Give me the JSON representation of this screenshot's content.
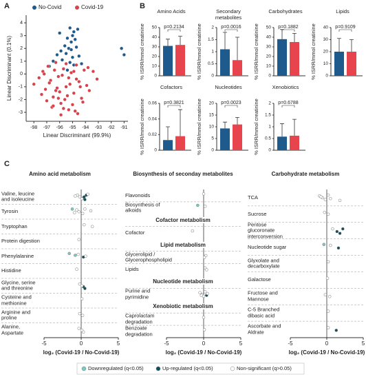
{
  "chart_data": [
    {
      "type": "scatter",
      "panel": "A",
      "xlabel": "Linear Discriminant (99.9%)",
      "ylabel": "Linear Discriminant (0.1%)",
      "xlim": [
        -98.6,
        -90.7
      ],
      "xticks": [
        -98,
        -97,
        -96,
        -95,
        -94,
        -93,
        -92,
        -91
      ],
      "ylim": [
        -3.7,
        4.6
      ],
      "yticks": [
        -3,
        -2,
        -1,
        0,
        1,
        2,
        3,
        4
      ],
      "series": [
        {
          "name": "No-Covid",
          "color": "#1f5a8c",
          "x": [
            -95.2,
            -94.9,
            -95.0,
            -94.6,
            -95.4,
            -95.1,
            -94.8,
            -95.6,
            -95.3,
            -94.7,
            -95.9,
            -96.2,
            -95.5,
            -95.0,
            -94.5,
            -96.5,
            -95.8,
            -95.2,
            -94.9,
            -96.8,
            -95.7,
            -95.4,
            -94.3,
            -91.2,
            -91.0,
            -96.0,
            -95.1
          ],
          "y": [
            3.6,
            3.3,
            3.0,
            3.5,
            2.8,
            2.5,
            2.7,
            2.2,
            2.0,
            2.1,
            1.8,
            1.5,
            1.6,
            1.3,
            1.4,
            1.0,
            1.1,
            0.9,
            0.7,
            0.6,
            0.4,
            0.3,
            0.8,
            2.0,
            1.5,
            3.2,
            1.9
          ]
        },
        {
          "name": "Covid-19",
          "color": "#d6434c",
          "x": [
            -98.0,
            -97.6,
            -97.3,
            -97.1,
            -96.9,
            -96.7,
            -96.5,
            -96.3,
            -96.1,
            -95.9,
            -95.7,
            -95.5,
            -95.3,
            -95.1,
            -94.9,
            -94.7,
            -94.5,
            -94.3,
            -94.1,
            -93.9,
            -93.7,
            -93.4,
            -93.1,
            -97.4,
            -97.0,
            -96.6,
            -96.2,
            -95.8,
            -95.4,
            -95.0,
            -94.6,
            -94.2,
            -93.8,
            -96.8,
            -96.4,
            -96.0,
            -95.6,
            -95.2,
            -94.8,
            -94.4,
            -97.2,
            -96.5,
            -95.9,
            -95.3,
            -94.7,
            -96.1,
            -95.5,
            -94.9,
            -95.7,
            -96.3
          ],
          "y": [
            -0.8,
            -0.3,
            0.2,
            -1.2,
            0.6,
            -0.5,
            -1.8,
            0.9,
            -0.2,
            -2.3,
            0.4,
            -1.0,
            -2.8,
            0.1,
            -1.5,
            0.7,
            -0.6,
            -1.9,
            0.3,
            -0.9,
            -1.3,
            0.2,
            -0.4,
            -1.6,
            -2.1,
            -2.6,
            -1.1,
            -0.1,
            -1.7,
            -2.4,
            -3.1,
            -2.2,
            0.5,
            -0.7,
            0.3,
            -1.4,
            -2.0,
            -0.8,
            -2.9,
            -1.0,
            0.0,
            -2.5,
            -3.2,
            -0.3,
            -0.4,
            -1.9,
            0.8,
            0.2,
            -2.7,
            -1.3
          ]
        }
      ]
    },
    {
      "type": "bar",
      "panel": "B",
      "title": "Amino Acids",
      "ylabel": "% ISRR/mmol creatinine",
      "annotation": "p=0.2134",
      "values": [
        31,
        32
      ],
      "errors": [
        7,
        9
      ],
      "colors": [
        "#1f5a8c",
        "#e8444e"
      ],
      "ylim": [
        0,
        50
      ],
      "yticks": [
        0,
        10,
        20,
        30,
        40,
        50
      ]
    },
    {
      "type": "bar",
      "title": "Secondary metabolites",
      "ylabel": "% ISRR/mmol creatinine",
      "annotation": "p=0.0016",
      "values": [
        1.1,
        0.65
      ],
      "errors": [
        0.7,
        0.95
      ],
      "colors": [
        "#1f5a8c",
        "#e8444e"
      ],
      "ylim": [
        0,
        2
      ],
      "yticks": [
        0,
        0.5,
        1,
        1.5,
        2
      ]
    },
    {
      "type": "bar",
      "title": "Carbohydrates",
      "ylabel": "% ISRR/mmol creatinine",
      "annotation": "p=0.1882",
      "values": [
        38,
        35
      ],
      "errors": [
        10,
        9
      ],
      "colors": [
        "#1f5a8c",
        "#e8444e"
      ],
      "ylim": [
        0,
        50
      ],
      "yticks": [
        0,
        10,
        20,
        30,
        40,
        50
      ]
    },
    {
      "type": "bar",
      "title": "Lipids",
      "ylabel": "% ISRR/mmol creatinine",
      "annotation": "p=0.9109",
      "values": [
        20,
        20
      ],
      "errors": [
        11,
        10
      ],
      "colors": [
        "#1f5a8c",
        "#e8444e"
      ],
      "ylim": [
        0,
        40
      ],
      "yticks": [
        0,
        10,
        20,
        30,
        40
      ]
    },
    {
      "type": "bar",
      "title": "Cofactors",
      "ylabel": "% ISRR/mmol creatinine",
      "annotation": "p=0.3821",
      "values": [
        0.013,
        0.018
      ],
      "errors": [
        0.017,
        0.034
      ],
      "colors": [
        "#1f5a8c",
        "#e8444e"
      ],
      "ylim": [
        0,
        0.06
      ],
      "yticks": [
        0,
        0.02,
        0.04,
        0.06
      ]
    },
    {
      "type": "bar",
      "title": "Nucleotides",
      "ylabel": "% ISRR/mmol creatinine",
      "annotation": "p=0.0023",
      "values": [
        9.3,
        11
      ],
      "errors": [
        2.7,
        3
      ],
      "colors": [
        "#1f5a8c",
        "#e8444e"
      ],
      "ylim": [
        0,
        20
      ],
      "yticks": [
        0,
        5,
        10,
        15,
        20
      ]
    },
    {
      "type": "bar",
      "title": "Xenobiotics",
      "ylabel": "% ISRR/mmol creatinine",
      "annotation": "p=0.6788",
      "values": [
        0.58,
        0.62
      ],
      "errors": [
        0.55,
        0.7
      ],
      "colors": [
        "#1f5a8c",
        "#e8444e"
      ],
      "ylim": [
        0,
        2
      ],
      "yticks": [
        0,
        0.5,
        1,
        1.5,
        2
      ]
    },
    {
      "type": "dot",
      "panel": "C",
      "xlabel": "log₂ (Covid-19 / No-Covid-19)",
      "xlim": [
        -5,
        5
      ],
      "xticks": [
        -5,
        0,
        5
      ],
      "series": [
        {
          "name": "Downregulated (q<0.05)",
          "color": "#7ccac4"
        },
        {
          "name": "Up-regulated (q<0.05)",
          "color": "#0f4f5c"
        },
        {
          "name": "Non-significant (q>0.05)",
          "color": "#ffffff"
        }
      ],
      "groups": [
        {
          "title": "Amino acid metabolism",
          "categories": [
            "Valine, leucine and isoleucine",
            "Tyrosin",
            "Tryptophan",
            "Protein digestion",
            "Phenylalanine",
            "Histidine",
            "Glycine, serine and threonine",
            "Cysteine and methionine",
            "Arginine and proline",
            "Alanine, Aspartate"
          ],
          "points": [
            [
              [],
              [
                0.3,
                0.5,
                0.7,
                0.4
              ],
              [
                -0.5,
                -0.2,
                0.1,
                0.9,
                -0.8
              ]
            ],
            [
              [
                -1.2
              ],
              [],
              [
                -0.6,
                -0.3,
                0.2,
                0.5,
                1.3,
                -0.9
              ]
            ],
            [
              [],
              [],
              [
                0.4,
                1.5
              ]
            ],
            [
              [],
              [],
              [
                -0.3
              ]
            ],
            [
              [
                -1.6,
                -0.8
              ],
              [
                0.3
              ],
              [
                -0.4,
                0.6
              ]
            ],
            [
              [],
              [],
              [
                -0.6
              ]
            ],
            [
              [],
              [
                0.3,
                0.5
              ],
              [
                -0.2,
                0.1
              ]
            ],
            [
              [],
              [],
              [
                0.1
              ]
            ],
            [
              [],
              [],
              [
                -0.2,
                0.2
              ]
            ],
            [
              [],
              [],
              [
                -0.3,
                0.1,
                0.3
              ]
            ]
          ]
        }
      ]
    },
    {
      "type": "dot",
      "xlabel": "log₂ (Covid-19 / No-Covid-19)",
      "xlim": [
        -5,
        5
      ],
      "xticks": [
        -5,
        0,
        5
      ],
      "groups": [
        {
          "title": "Biosynthesis of seconday metabolites",
          "categories": [
            "Flavonoids",
            "Biosynthesis of alkoids"
          ],
          "points": [
            [
              [],
              [],
              [
                0
              ]
            ],
            [
              [
                -0.8
              ],
              [],
              [
                0.2
              ]
            ]
          ]
        },
        {
          "title": "Cofactor metabolism",
          "categories": [
            "Cofactor"
          ],
          "points": [
            [
              [],
              [],
              [
                -1.5
              ]
            ]
          ]
        },
        {
          "title": "Lipid metabolism",
          "categories": [
            "Glycerolipid / Glycerophospholipid",
            "Lipids"
          ],
          "points": [
            [
              [],
              [],
              [
                0.3,
                0.1
              ]
            ],
            [
              [],
              [],
              [
                0.2,
                0.4
              ]
            ]
          ]
        },
        {
          "title": "Nucleotide metabolism",
          "categories": [
            "Purine and pyrimidine"
          ],
          "points": [
            [
              [],
              [
                0.4
              ],
              [
                -0.5,
                -0.2,
                0,
                0.2,
                0.5,
                -0.3
              ]
            ]
          ]
        },
        {
          "title": "Xenobiotic metabolism",
          "categories": [
            "Caprolactam degradation",
            "Benzoate degradation"
          ],
          "points": [
            [
              [],
              [],
              [
                0
              ]
            ],
            [
              [],
              [],
              [
                0.1
              ]
            ]
          ]
        }
      ]
    },
    {
      "type": "dot",
      "xlabel": "log₂ (Covid-19 / No-Covid-19)",
      "xlim": [
        -5,
        5
      ],
      "xticks": [
        -5,
        0,
        5
      ],
      "groups": [
        {
          "title": "Carbohydrate metabolism",
          "categories": [
            "TCA",
            "Sucrose",
            "Pentose glucoronate interconversion",
            "Nucleotide sugar",
            "Glyxolate and decarboxylate",
            "Galactose",
            "Fructose and Mannose",
            "C-5 Branched dibasic acid",
            "Ascorbate and Aldrate"
          ],
          "points": [
            [
              [],
              [],
              [
                -1,
                -0.6,
                -0.2,
                0.2,
                -0.8,
                0.5,
                1.8
              ]
            ],
            [
              [],
              [],
              [
                -0.3,
                0.2
              ]
            ],
            [
              [],
              [
                1.4,
                1.8,
                2.2
              ],
              [
                0.8
              ]
            ],
            [
              [
                -0.4
              ],
              [
                1.6
              ],
              [
                0.5
              ]
            ],
            [
              [],
              [],
              [
                0.2
              ]
            ],
            [
              [],
              [],
              [
                0.1
              ]
            ],
            [
              [],
              [],
              [
                -0.2,
                0.4
              ]
            ],
            [
              [],
              [],
              [
                0.2
              ]
            ],
            [
              [],
              [
                1.3
              ],
              [
                0.2
              ]
            ]
          ]
        }
      ]
    }
  ]
}
